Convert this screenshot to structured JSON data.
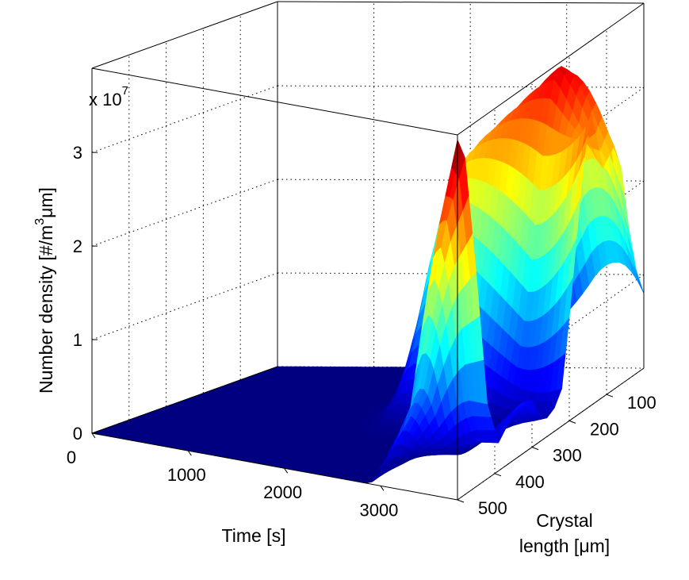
{
  "chart_data": {
    "type": "surface",
    "title": "",
    "zlabel_parts": {
      "pre": "Number density [#/m",
      "sup": "3",
      "post": "μm]"
    },
    "xlabel": "Time [s]",
    "ylabel_line1": "Crystal",
    "ylabel_line2": "length [μm]",
    "exponent_label": {
      "base": "x 10",
      "power": "7"
    },
    "xlim": [
      0,
      3800
    ],
    "ylim": [
      0,
      500
    ],
    "zlim": [
      0,
      3.9
    ],
    "z_exponent": 7,
    "x_ticks": [
      {
        "value": 0,
        "label": "0"
      },
      {
        "value": 1000,
        "label": "1000"
      },
      {
        "value": 2000,
        "label": "2000"
      },
      {
        "value": 3000,
        "label": "3000"
      }
    ],
    "y_ticks": [
      {
        "value": 100,
        "label": "100"
      },
      {
        "value": 200,
        "label": "200"
      },
      {
        "value": 300,
        "label": "300"
      },
      {
        "value": 400,
        "label": "400"
      },
      {
        "value": 500,
        "label": "500"
      }
    ],
    "z_ticks": [
      {
        "value": 0,
        "label": "0"
      },
      {
        "value": 1,
        "label": "1"
      },
      {
        "value": 2,
        "label": "2"
      },
      {
        "value": 3,
        "label": "3"
      }
    ],
    "surface_profile_at_time_3800": {
      "crystal_length": [
        0,
        20,
        40,
        60,
        80,
        110,
        140,
        160,
        180,
        200,
        220,
        240,
        260,
        280,
        300,
        330,
        360,
        390,
        420,
        450,
        480,
        500
      ],
      "number_density_x1e7": [
        0.8,
        1.1,
        1.6,
        2.3,
        2.6,
        2.45,
        3.1,
        2.7,
        1.9,
        1.1,
        0.4,
        0.25,
        0.2,
        0.3,
        0.5,
        0.55,
        0.45,
        0.3,
        0.8,
        2.3,
        3.6,
        3.85
      ]
    },
    "colormap": "jet",
    "grid": true,
    "box": true
  }
}
